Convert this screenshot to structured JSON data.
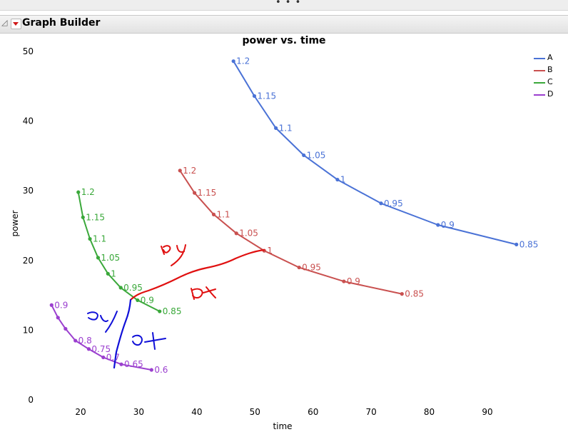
{
  "window": {
    "grip": "• • •",
    "collapse_glyph": "◿",
    "header_title": "Graph Builder"
  },
  "chart_data": {
    "type": "line",
    "title": "power vs. time",
    "xlabel": "time",
    "ylabel": "power",
    "xlim": [
      13,
      97
    ],
    "ylim": [
      0,
      50
    ],
    "xticks": [
      20,
      30,
      40,
      50,
      60,
      70,
      80,
      90
    ],
    "yticks": [
      0,
      10,
      20,
      30,
      40,
      50
    ],
    "grid": false,
    "legend_position": "right",
    "series": [
      {
        "name": "A",
        "color": "#4a72d6",
        "points": [
          {
            "x": 46.3,
            "y": 48.6,
            "label": "1.2"
          },
          {
            "x": 49.9,
            "y": 43.6,
            "label": "1.15"
          },
          {
            "x": 53.6,
            "y": 39.0,
            "label": "1.1"
          },
          {
            "x": 58.4,
            "y": 35.1,
            "label": "1.05"
          },
          {
            "x": 64.2,
            "y": 31.6,
            "label": "1"
          },
          {
            "x": 71.7,
            "y": 28.2,
            "label": "0.95"
          },
          {
            "x": 81.5,
            "y": 25.1,
            "label": "0.9"
          },
          {
            "x": 95.0,
            "y": 22.3,
            "label": "0.85"
          }
        ]
      },
      {
        "name": "B",
        "color": "#c9504f",
        "points": [
          {
            "x": 37.1,
            "y": 32.9,
            "label": "1.2"
          },
          {
            "x": 39.6,
            "y": 29.7,
            "label": "1.15"
          },
          {
            "x": 42.9,
            "y": 26.6,
            "label": "1.1"
          },
          {
            "x": 46.8,
            "y": 23.9,
            "label": "1.05"
          },
          {
            "x": 51.6,
            "y": 21.4,
            "label": "1"
          },
          {
            "x": 57.6,
            "y": 19.0,
            "label": "0.95"
          },
          {
            "x": 65.3,
            "y": 17.0,
            "label": "0.9"
          },
          {
            "x": 75.3,
            "y": 15.2,
            "label": "0.85"
          }
        ]
      },
      {
        "name": "C",
        "color": "#3aa83a",
        "points": [
          {
            "x": 19.6,
            "y": 29.8,
            "label": "1.2"
          },
          {
            "x": 20.4,
            "y": 26.2,
            "label": "1.15"
          },
          {
            "x": 21.6,
            "y": 23.1,
            "label": "1.1"
          },
          {
            "x": 23.0,
            "y": 20.4,
            "label": "1.05"
          },
          {
            "x": 24.7,
            "y": 18.1,
            "label": "1"
          },
          {
            "x": 26.9,
            "y": 16.1,
            "label": "0.95"
          },
          {
            "x": 29.8,
            "y": 14.3,
            "label": "0.9"
          },
          {
            "x": 33.6,
            "y": 12.7,
            "label": "0.85"
          }
        ]
      },
      {
        "name": "D",
        "color": "#9b3fcf",
        "points": [
          {
            "x": 15.0,
            "y": 13.6,
            "label": "0.9"
          },
          {
            "x": 16.1,
            "y": 11.8,
            "label": ""
          },
          {
            "x": 17.4,
            "y": 10.2,
            "label": ""
          },
          {
            "x": 19.1,
            "y": 8.5,
            "label": "0.8"
          },
          {
            "x": 21.4,
            "y": 7.3,
            "label": "0.75"
          },
          {
            "x": 23.9,
            "y": 6.1,
            "label": "0.7"
          },
          {
            "x": 27.0,
            "y": 5.1,
            "label": "0.65"
          },
          {
            "x": 32.2,
            "y": 4.3,
            "label": "0.6"
          }
        ]
      }
    ],
    "annotations": {
      "blue_labels": [
        "dy",
        "dx"
      ],
      "red_labels": [
        "dy",
        "dx"
      ]
    }
  }
}
